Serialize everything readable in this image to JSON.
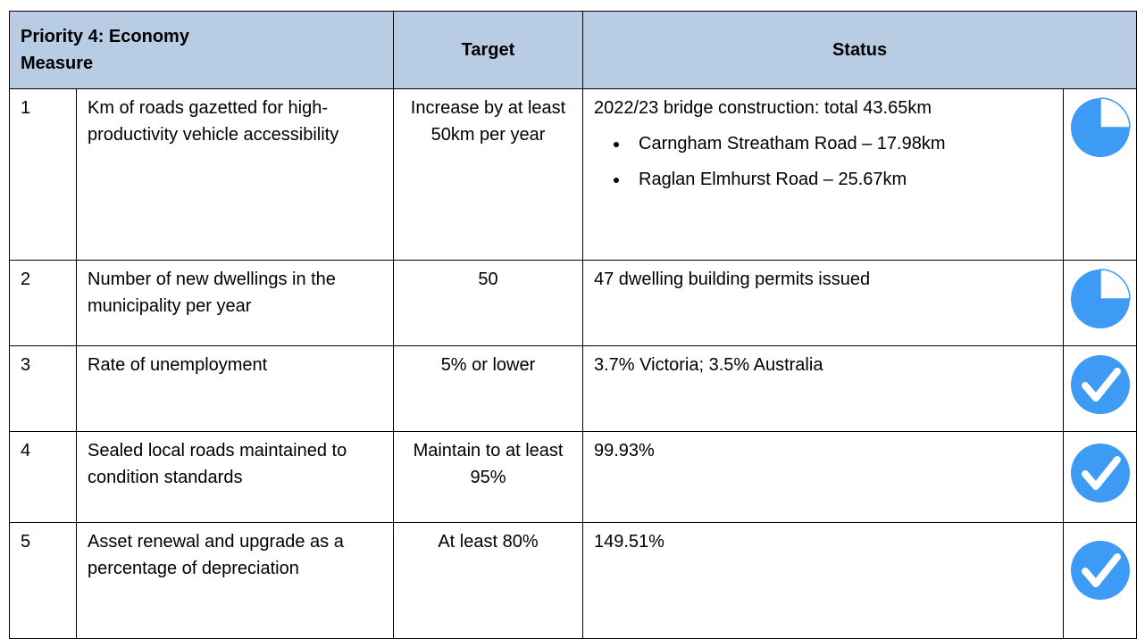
{
  "header": {
    "title": "Priority 4: Economy",
    "measure": "Measure",
    "target": "Target",
    "status": "Status"
  },
  "rows": [
    {
      "number": "1",
      "measure": "Km of roads gazetted for high-productivity vehicle accessibility",
      "target": "Increase by at least 50km per year",
      "status": "2022/23 bridge construction: total 43.65km",
      "bullets": [
        "Carngham Streatham Road – 17.98km",
        "Raglan Elmhurst Road – 25.67km"
      ]
    },
    {
      "number": "2",
      "measure": "Number of new dwellings in the municipality per year",
      "target": "50",
      "status": "47 dwelling building permits issued"
    },
    {
      "number": "3",
      "measure": "Rate of unemployment",
      "target": "5% or lower",
      "status": "3.7% Victoria; 3.5% Australia"
    },
    {
      "number": "4",
      "measure": "Sealed local roads maintained to condition standards",
      "target": "Maintain to at least 95%",
      "status": "99.93%"
    },
    {
      "number": "5",
      "measure": "Asset renewal and upgrade as a percentage of depreciation",
      "target": "At least 80%",
      "status": "149.51%"
    }
  ]
}
